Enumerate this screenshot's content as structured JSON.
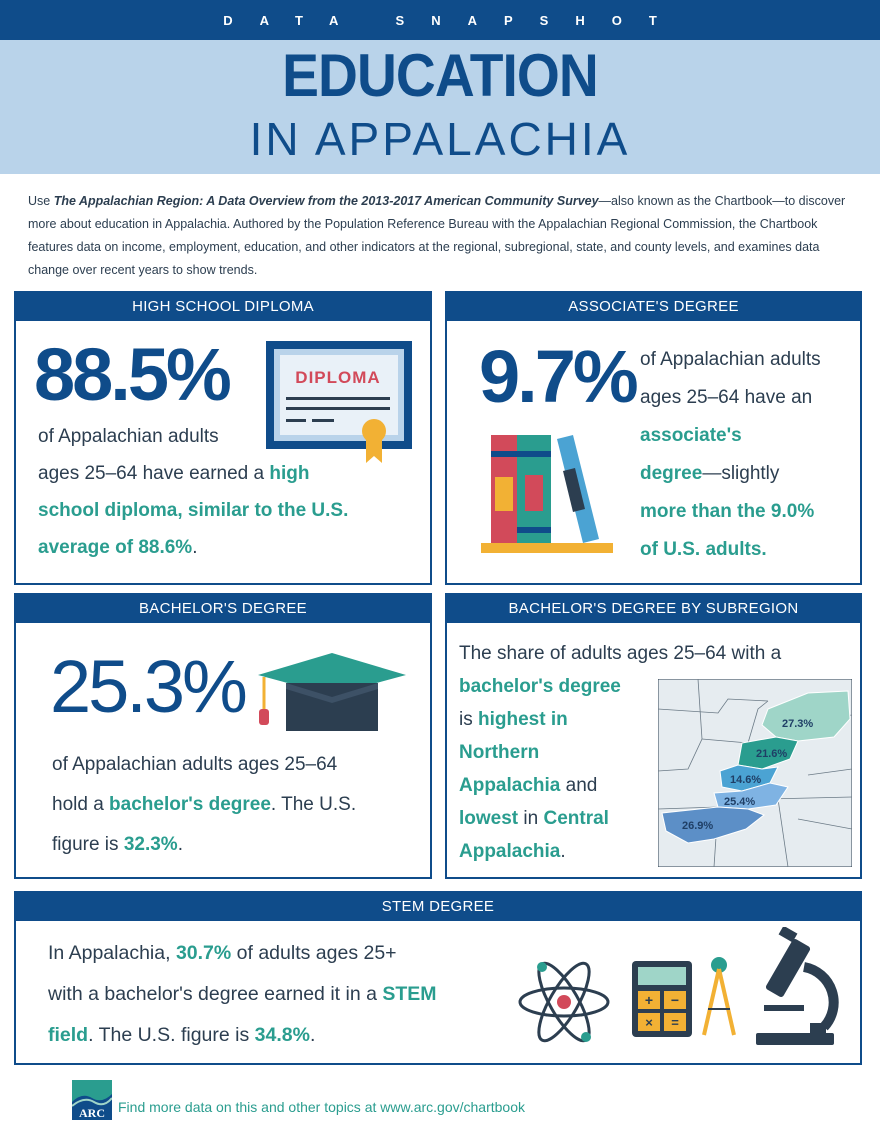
{
  "header": {
    "kicker": "DATA SNAPSHOT",
    "title": "EDUCATION",
    "subtitle": "IN APPALACHIA"
  },
  "intro": {
    "lead": "Use ",
    "book_title": "The Appalachian Region: A Data Overview from the 2013-2017 American Community Survey",
    "rest": "—also known as the Chartbook—to discover more about education in Appalachia. Authored by the Population Reference Bureau with the Appalachian Regional Commission, the Chartbook features data on income, employment, education, and other indicators at the regional, subregional, state, and county levels, and examines data change over recent years to show trends."
  },
  "high_school": {
    "heading": "HIGH SCHOOL DIPLOMA",
    "stat": "88.5%",
    "line1": "of Appalachian adults",
    "line2a": "ages 25–64 have earned a ",
    "line2b": "high",
    "line3": "school diploma, similar to the U.S.",
    "line4a": "average of ",
    "line4b": "88.6%",
    "line4c": ".",
    "diploma_label": "DIPLOMA"
  },
  "associate": {
    "heading": "ASSOCIATE'S DEGREE",
    "stat": "9.7%",
    "line1": "of Appalachian adults",
    "line2": "ages 25–64 have an",
    "line3": "associate's",
    "line4a": "degree",
    "line4b": "—slightly",
    "line5a": "more than the ",
    "line5b": "9.0%",
    "line6": "of U.S. adults."
  },
  "bachelor": {
    "heading": "BACHELOR'S DEGREE",
    "stat": "25.3%",
    "line1": "of Appalachian adults ages 25–64",
    "line2a": "hold a ",
    "line2b": "bachelor's degree",
    "line2c": ". The U.S.",
    "line3a": "figure is ",
    "line3b": "32.3%",
    "line3c": "."
  },
  "subregion": {
    "heading": "BACHELOR'S DEGREE BY SUBREGION",
    "line1": "The share of adults ages 25–64 with a",
    "line2": "bachelor's degree",
    "line3a": "is ",
    "line3b": "highest in",
    "line4": "Northern",
    "line5a": "Appalachia",
    "line5b": " and",
    "line6a": "lowest",
    "line6b": " in ",
    "line6c": "Central",
    "line7a": "Appalachia",
    "line7b": ".",
    "map_labels": [
      "27.3%",
      "21.6%",
      "14.6%",
      "25.4%",
      "26.9%"
    ]
  },
  "stem": {
    "heading": "STEM DEGREE",
    "line1a": "In Appalachia, ",
    "line1b": "30.7%",
    "line1c": " of adults ages 25+",
    "line2a": "with a bachelor's degree earned it in a ",
    "line2b": "STEM",
    "line3a": "field",
    "line3b": ". The U.S. figure is ",
    "line3c": "34.8%",
    "line3d": "."
  },
  "footer": {
    "logo_text": "ARC",
    "text": "Find more data on this and other topics at ",
    "url": "www.arc.gov/chartbook"
  },
  "colors": {
    "navy": "#0f4c8a",
    "light_blue": "#b9d3ea",
    "teal": "#2a9d8f"
  }
}
